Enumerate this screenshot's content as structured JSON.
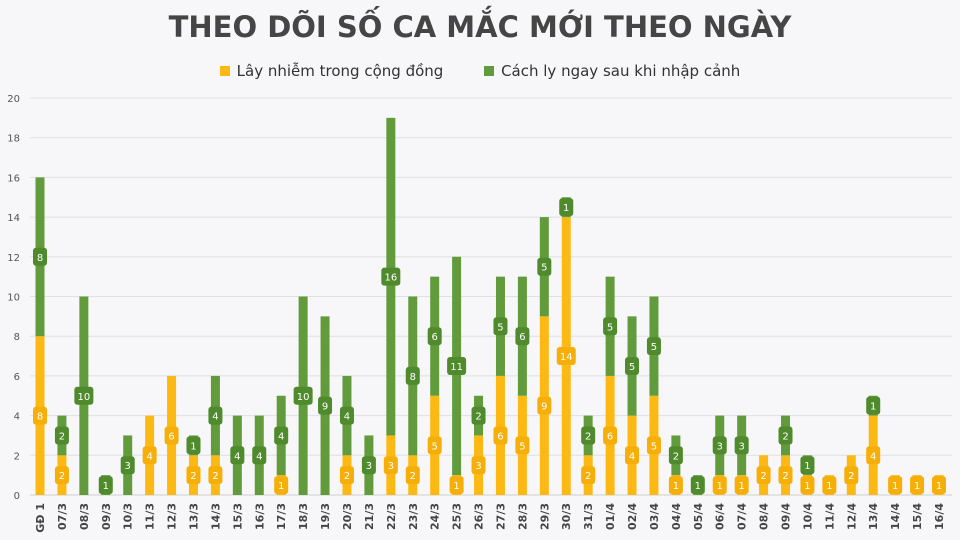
{
  "chart_data": {
    "type": "bar",
    "stacked": true,
    "title": "THEO DÕI SỐ CA MẮC MỚI THEO NGÀY",
    "xlabel": "",
    "ylabel": "",
    "ylim": [
      0,
      20
    ],
    "yticks": [
      0,
      2,
      4,
      6,
      8,
      10,
      12,
      14,
      16,
      18,
      20
    ],
    "grid": true,
    "legend_position": "top",
    "categories": [
      "GĐ 1",
      "07/3",
      "08/3",
      "09/3",
      "10/3",
      "11/3",
      "12/3",
      "13/3",
      "14/3",
      "15/3",
      "16/3",
      "17/3",
      "18/3",
      "19/3",
      "20/3",
      "21/3",
      "22/3",
      "23/3",
      "24/3",
      "25/3",
      "26/3",
      "27/3",
      "28/3",
      "29/3",
      "30/3",
      "31/3",
      "01/4",
      "02/4",
      "03/4",
      "04/4",
      "05/4",
      "06/4",
      "07/4",
      "08/4",
      "09/4",
      "10/4",
      "11/4",
      "12/4",
      "13/4",
      "14/4",
      "15/4",
      "16/4"
    ],
    "series": [
      {
        "name": "Lây nhiễm trong cộng đồng",
        "color": "#fdb913",
        "values": [
          8,
          2,
          0,
          0,
          0,
          4,
          6,
          2,
          2,
          0,
          0,
          1,
          0,
          0,
          2,
          0,
          3,
          2,
          5,
          1,
          3,
          6,
          5,
          9,
          14,
          2,
          6,
          4,
          5,
          1,
          0,
          1,
          1,
          2,
          2,
          1,
          1,
          2,
          4,
          1,
          1,
          1
        ]
      },
      {
        "name": "Cách ly ngay sau khi nhập cảnh",
        "color": "#629b3b",
        "values": [
          8,
          2,
          10,
          1,
          3,
          0,
          0,
          1,
          4,
          4,
          4,
          4,
          10,
          9,
          4,
          3,
          16,
          8,
          6,
          11,
          2,
          5,
          6,
          5,
          1,
          2,
          5,
          5,
          5,
          2,
          1,
          3,
          3,
          0,
          2,
          1,
          0,
          0,
          1,
          0,
          0,
          0
        ]
      }
    ]
  }
}
